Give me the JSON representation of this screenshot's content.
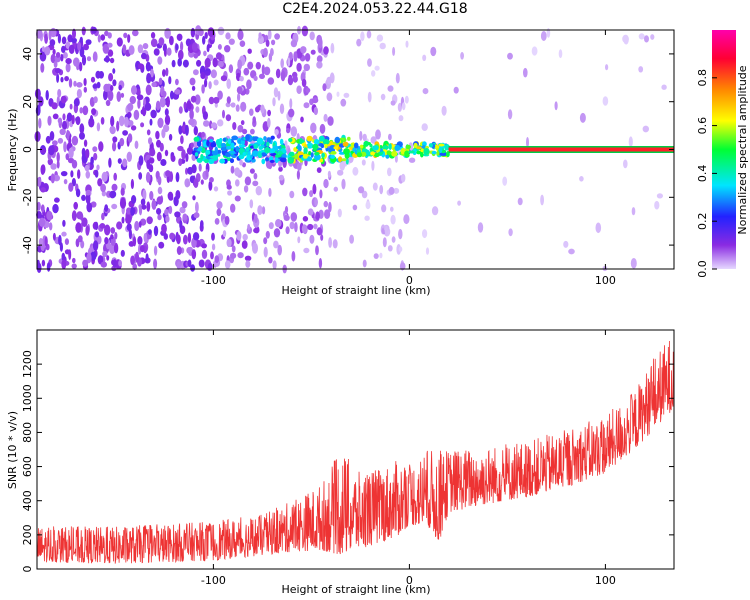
{
  "title": "C2E4.2024.053.22.44.G18",
  "chart_data": [
    {
      "type": "heatmap",
      "xlabel": "Height of straight line (km)",
      "ylabel": "Frequency (Hz)",
      "xlim": [
        -190,
        135
      ],
      "ylim": [
        -50,
        50
      ],
      "xticks": [
        -100,
        0,
        100
      ],
      "yticks": [
        -40,
        -20,
        0,
        20,
        40
      ],
      "colorbar": {
        "label": "Normalized spectral amplitude",
        "range": [
          0,
          1
        ],
        "ticks": [
          0.0,
          0.2,
          0.4,
          0.6,
          0.8
        ],
        "colors": [
          "#e6d8ff",
          "#8a2be2",
          "#2222ff",
          "#00e5ff",
          "#00ff33",
          "#ffff00",
          "#ff8800",
          "#ff0033",
          "#ff00aa"
        ]
      },
      "carrier_line": {
        "x_start": 20,
        "x_end": 135,
        "frequency": 0,
        "amplitude": 0.85
      }
    },
    {
      "type": "line",
      "xlabel": "Height of straight line (km)",
      "ylabel": "SNR (10 * v/v)",
      "xlim": [
        -190,
        135
      ],
      "ylim": [
        0,
        1400
      ],
      "xticks": [
        -100,
        0,
        100
      ],
      "yticks": [
        0,
        200,
        400,
        600,
        800,
        1000,
        1200
      ],
      "series": [
        {
          "color": "#ee3333",
          "envelope": {
            "x": [
              -190,
              -150,
              -100,
              -75,
              -60,
              -45,
              -35,
              -25,
              -15,
              -5,
              0,
              10,
              15,
              20,
              40,
              60,
              80,
              100,
              115,
              125,
              135
            ],
            "low": [
              40,
              30,
              50,
              80,
              100,
              110,
              80,
              120,
              150,
              200,
              260,
              240,
              150,
              330,
              380,
              420,
              480,
              560,
              700,
              820,
              940
            ],
            "high": [
              250,
              250,
              280,
              320,
              400,
              500,
              700,
              560,
              600,
              640,
              620,
              700,
              700,
              700,
              720,
              750,
              820,
              900,
              1050,
              1250,
              1390
            ]
          }
        }
      ]
    }
  ]
}
